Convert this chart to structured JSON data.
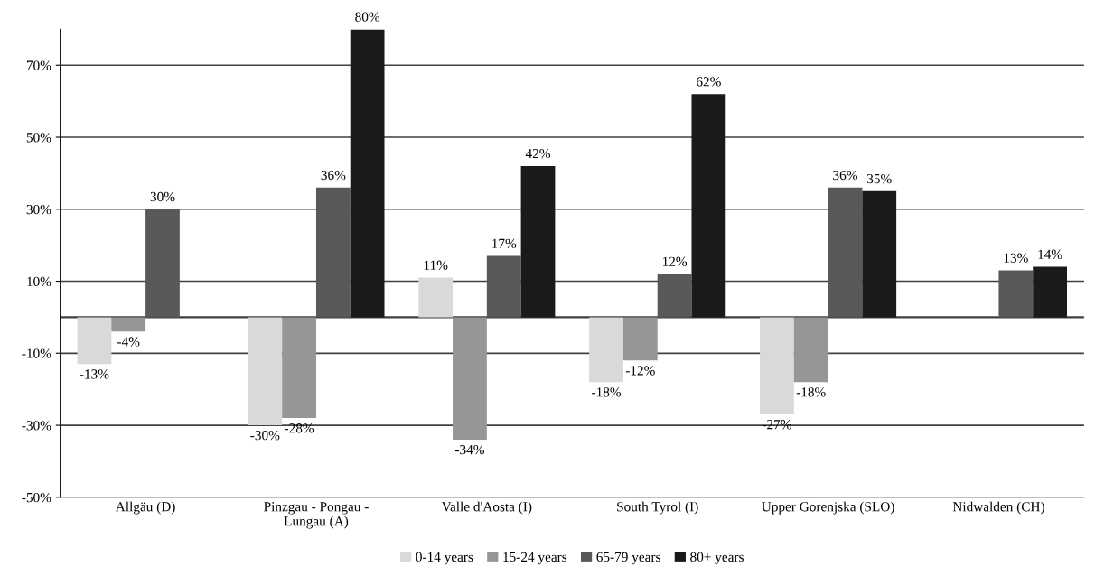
{
  "chart_data": {
    "type": "bar",
    "categories": [
      "Allgäu (D)",
      "Pinzgau - Pongau -\nLungau (A)",
      "Valle d'Aosta (I)",
      "South Tyrol (I)",
      "Upper Gorenjska (SLO)",
      "Nidwalden (CH)"
    ],
    "series": [
      {
        "name": "0-14 years",
        "color": "#d9d9d9",
        "values": [
          -13,
          -30,
          11,
          -18,
          -27,
          null
        ],
        "value_labels": [
          "-13%",
          "-30%",
          "11%",
          "-18%",
          "-27%",
          null
        ]
      },
      {
        "name": "15-24 years",
        "color": "#969696",
        "values": [
          -4,
          -28,
          -34,
          -12,
          -18,
          null
        ],
        "value_labels": [
          "-4%",
          "-28%",
          "-34%",
          "-12%",
          "-18%",
          null
        ]
      },
      {
        "name": "65-79 years",
        "color": "#595959",
        "values": [
          30,
          36,
          17,
          12,
          36,
          13
        ],
        "value_labels": [
          "30%",
          "36%",
          "17%",
          "12%",
          "36%",
          "13%"
        ]
      },
      {
        "name": "80+ years",
        "color": "#1a1a1a",
        "values": [
          null,
          80,
          42,
          62,
          35,
          14
        ],
        "value_labels": [
          null,
          "80%",
          "42%",
          "62%",
          "35%",
          "14%"
        ]
      }
    ],
    "ylim": [
      -50,
      80
    ],
    "yticks": [
      {
        "value": -50,
        "label": "-50%"
      },
      {
        "value": -30,
        "label": "-30%"
      },
      {
        "value": -10,
        "label": "-10%"
      },
      {
        "value": 10,
        "label": "10%"
      },
      {
        "value": 30,
        "label": "30%"
      },
      {
        "value": 50,
        "label": "50%"
      },
      {
        "value": 70,
        "label": "70%"
      }
    ],
    "ref_lines": [
      {
        "axis": "y",
        "value": 0,
        "label": null,
        "color": "#404040"
      }
    ],
    "grid": "y",
    "legend": "bottom"
  }
}
